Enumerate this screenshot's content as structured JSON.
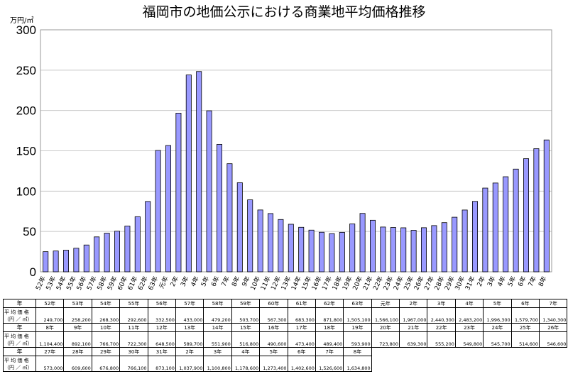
{
  "chart_data": {
    "type": "bar",
    "title": "福岡市の地価公示における商業地平均価格推移",
    "ylabel": "万円/㎡",
    "ylim": [
      0,
      300
    ],
    "yticks": [
      0,
      50,
      100,
      150,
      200,
      250,
      300
    ],
    "grid": true,
    "bar_color": "#9999ff",
    "categories": [
      "52年",
      "53年",
      "54年",
      "55年",
      "56年",
      "57年",
      "58年",
      "59年",
      "60年",
      "61年",
      "62年",
      "63年",
      "元年",
      "2年",
      "3年",
      "4年",
      "5年",
      "6年",
      "7年",
      "8年",
      "9年",
      "10年",
      "11年",
      "12年",
      "13年",
      "14年",
      "15年",
      "16年",
      "17年",
      "18年",
      "19年",
      "20年",
      "21年",
      "22年",
      "23年",
      "24年",
      "25年",
      "26年",
      "27年",
      "28年",
      "29年",
      "30年",
      "31年",
      "2年",
      "3年",
      "4年",
      "5年",
      "6年",
      "7年",
      "8年"
    ],
    "values": [
      24.97,
      25.82,
      26.83,
      29.26,
      33.25,
      43.3,
      47.92,
      50.37,
      56.73,
      68.33,
      87.18,
      150.51,
      156.61,
      196.7,
      244.03,
      248.32,
      199.63,
      157.97,
      134.03,
      110.44,
      89.21,
      76.67,
      72.23,
      64.85,
      58.97,
      55.19,
      51.68,
      49.06,
      47.34,
      48.94,
      59.39,
      72.38,
      63.93,
      55.52,
      54.98,
      54.57,
      51.46,
      54.66,
      57.3,
      60.96,
      67.68,
      76.61,
      87.31,
      103.79,
      110.08,
      117.86,
      127.34,
      140.26,
      152.66,
      163.48
    ]
  },
  "table": {
    "year_label": "年",
    "price_label_1": "平 均 価 格",
    "price_label_2": "（円 ／ ㎡）",
    "prices": [
      "249,700",
      "258,200",
      "268,300",
      "292,600",
      "332,500",
      "433,000",
      "479,200",
      "503,700",
      "567,300",
      "683,300",
      "871,800",
      "1,505,100",
      "1,566,100",
      "1,967,000",
      "2,440,300",
      "2,483,200",
      "1,996,300",
      "1,579,700",
      "1,340,300",
      "1,104,400",
      "892,100",
      "766,700",
      "722,300",
      "648,500",
      "589,700",
      "551,900",
      "516,800",
      "490,600",
      "473,400",
      "489,400",
      "593,900",
      "723,800",
      "639,300",
      "555,200",
      "549,800",
      "545,700",
      "514,600",
      "546,600",
      "573,000",
      "609,600",
      "676,800",
      "766,100",
      "873,100",
      "1,037,900",
      "1,100,800",
      "1,178,600",
      "1,273,400",
      "1,402,600",
      "1,526,600",
      "1,634,800"
    ]
  }
}
